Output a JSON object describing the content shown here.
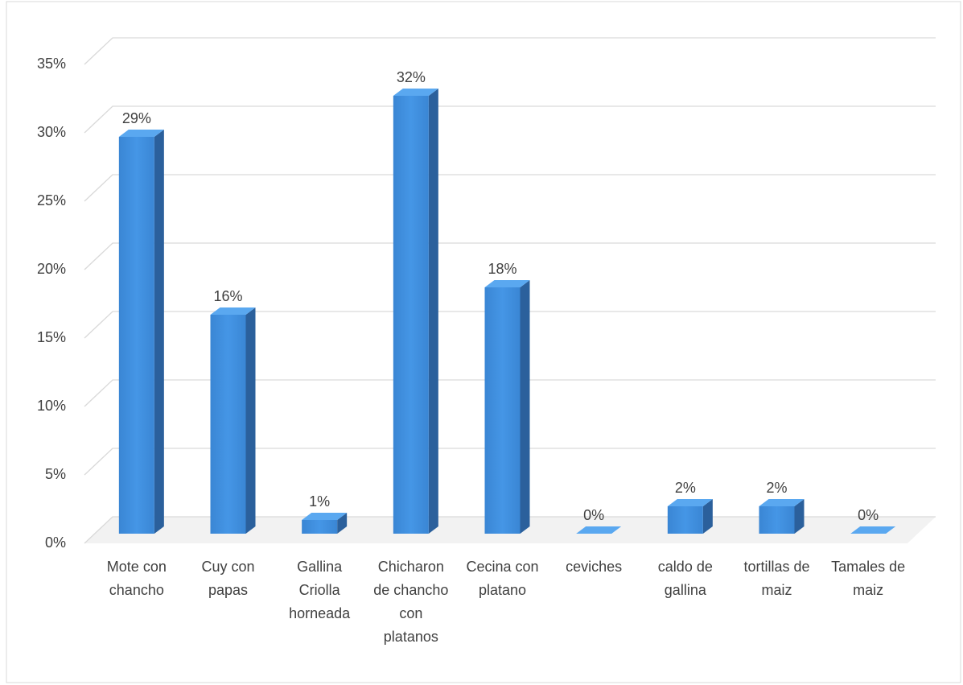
{
  "chart_data": {
    "type": "bar3d",
    "categories": [
      "Mote con chancho",
      "Cuy con papas",
      "Gallina Criolla horneada",
      "Chicharon de chancho con platanos",
      "Cecina con platano",
      "ceviches",
      "caldo de gallina",
      "tortillas de maiz",
      "Tamales de maiz"
    ],
    "values": [
      29,
      16,
      1,
      32,
      18,
      0,
      2,
      2,
      0
    ],
    "value_labels": [
      "29%",
      "16%",
      "1%",
      "32%",
      "18%",
      "0%",
      "2%",
      "2%",
      "0%"
    ],
    "color": "#3d8ddd",
    "ylim": [
      0,
      35
    ],
    "yticks": [
      {
        "value": 0,
        "label": "0%"
      },
      {
        "value": 5,
        "label": "5%"
      },
      {
        "value": 10,
        "label": "10%"
      },
      {
        "value": 15,
        "label": "15%"
      },
      {
        "value": 20,
        "label": "20%"
      },
      {
        "value": 25,
        "label": "25%"
      },
      {
        "value": 30,
        "label": "30%"
      },
      {
        "value": 35,
        "label": "35%"
      }
    ],
    "grid": true
  }
}
